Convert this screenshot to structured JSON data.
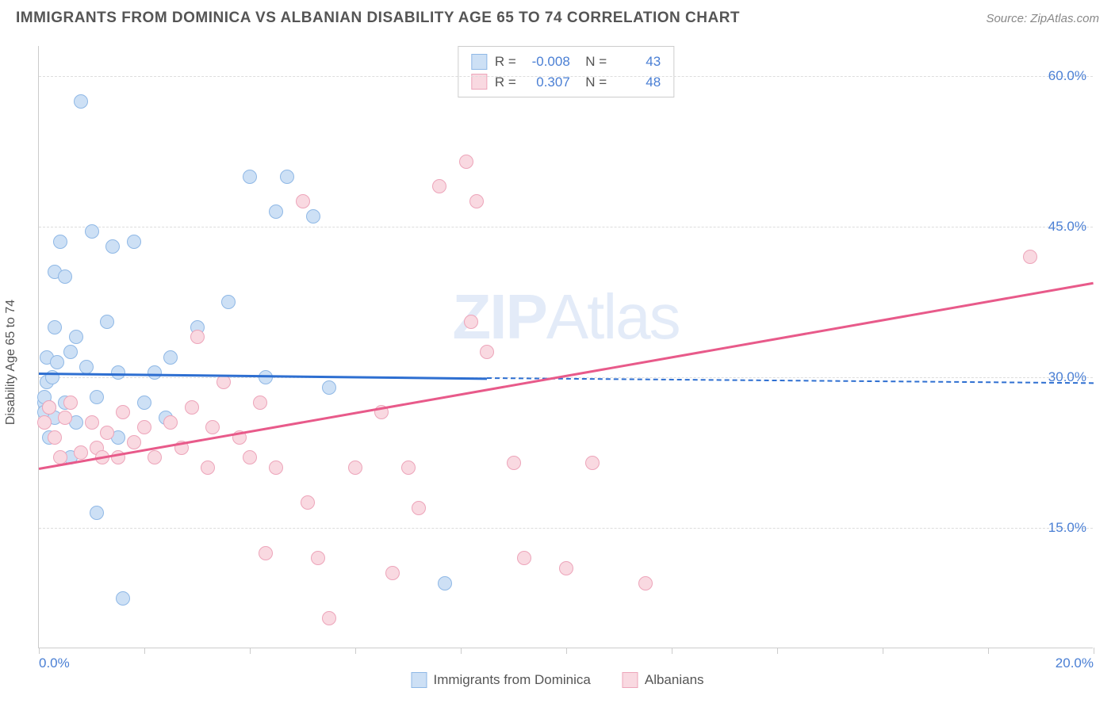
{
  "header": {
    "title": "IMMIGRANTS FROM DOMINICA VS ALBANIAN DISABILITY AGE 65 TO 74 CORRELATION CHART",
    "source": "Source: ZipAtlas.com"
  },
  "chart": {
    "type": "scatter",
    "yaxis_label": "Disability Age 65 to 74",
    "watermark": "ZIPAtlas",
    "background_color": "#ffffff",
    "grid_color": "#dddddd",
    "axis_color": "#cccccc",
    "label_color": "#555555",
    "tick_color": "#4a7fd4",
    "xlim": [
      0,
      20
    ],
    "ylim": [
      3,
      63
    ],
    "xticks": [
      0,
      2,
      4,
      6,
      8,
      10,
      12,
      14,
      16,
      18,
      20
    ],
    "xtick_labels": {
      "0": "0.0%",
      "20": "20.0%"
    },
    "yticks": [
      15,
      30,
      45,
      60
    ],
    "ytick_labels": {
      "15": "15.0%",
      "30": "30.0%",
      "45": "45.0%",
      "60": "60.0%"
    },
    "marker_radius": 9,
    "marker_stroke_width": 1.5,
    "series": [
      {
        "name": "Immigrants from Dominica",
        "color_fill": "#cde0f5",
        "color_stroke": "#8fb8e6",
        "r": "-0.008",
        "n": "43",
        "trend_color": "#2e6fd1",
        "trend_p1": [
          0.0,
          30.5
        ],
        "trend_p2": [
          8.5,
          30.0
        ],
        "dash_p1": [
          8.5,
          30.0
        ],
        "dash_p2": [
          20.0,
          29.5
        ],
        "points": [
          [
            0.1,
            27.5
          ],
          [
            0.1,
            28.0
          ],
          [
            0.1,
            26.5
          ],
          [
            0.15,
            32.0
          ],
          [
            0.2,
            27.0
          ],
          [
            0.2,
            24.0
          ],
          [
            0.3,
            26.0
          ],
          [
            0.3,
            35.0
          ],
          [
            0.3,
            40.5
          ],
          [
            0.35,
            31.5
          ],
          [
            0.4,
            43.5
          ],
          [
            0.5,
            40.0
          ],
          [
            0.5,
            27.5
          ],
          [
            0.6,
            32.5
          ],
          [
            0.6,
            22.0
          ],
          [
            0.7,
            34.0
          ],
          [
            0.7,
            25.5
          ],
          [
            0.8,
            57.5
          ],
          [
            0.9,
            31.0
          ],
          [
            1.0,
            44.5
          ],
          [
            1.1,
            16.5
          ],
          [
            1.1,
            28.0
          ],
          [
            1.3,
            35.5
          ],
          [
            1.4,
            43.0
          ],
          [
            1.5,
            30.5
          ],
          [
            1.5,
            24.0
          ],
          [
            1.6,
            8.0
          ],
          [
            1.8,
            43.5
          ],
          [
            2.0,
            27.5
          ],
          [
            2.2,
            30.5
          ],
          [
            2.4,
            26.0
          ],
          [
            2.5,
            32.0
          ],
          [
            3.0,
            35.0
          ],
          [
            3.6,
            37.5
          ],
          [
            4.0,
            50.0
          ],
          [
            4.3,
            30.0
          ],
          [
            4.5,
            46.5
          ],
          [
            4.7,
            50.0
          ],
          [
            5.2,
            46.0
          ],
          [
            5.5,
            29.0
          ],
          [
            7.7,
            9.5
          ],
          [
            0.15,
            29.5
          ],
          [
            0.25,
            30.0
          ]
        ]
      },
      {
        "name": "Albanians",
        "color_fill": "#f9d9e1",
        "color_stroke": "#eda5ba",
        "r": "0.307",
        "n": "48",
        "trend_color": "#e85a8a",
        "trend_p1": [
          0.0,
          21.0
        ],
        "trend_p2": [
          20.0,
          39.5
        ],
        "dash_p1": null,
        "dash_p2": null,
        "points": [
          [
            0.1,
            25.5
          ],
          [
            0.2,
            27.0
          ],
          [
            0.3,
            24.0
          ],
          [
            0.4,
            22.0
          ],
          [
            0.5,
            26.0
          ],
          [
            0.6,
            27.5
          ],
          [
            0.8,
            22.5
          ],
          [
            1.0,
            25.5
          ],
          [
            1.1,
            23.0
          ],
          [
            1.2,
            22.0
          ],
          [
            1.3,
            24.5
          ],
          [
            1.5,
            22.0
          ],
          [
            1.6,
            26.5
          ],
          [
            1.8,
            23.5
          ],
          [
            2.0,
            25.0
          ],
          [
            2.2,
            22.0
          ],
          [
            2.5,
            25.5
          ],
          [
            2.7,
            23.0
          ],
          [
            3.0,
            34.0
          ],
          [
            3.2,
            21.0
          ],
          [
            3.3,
            25.0
          ],
          [
            3.5,
            29.5
          ],
          [
            3.8,
            24.0
          ],
          [
            4.0,
            22.0
          ],
          [
            4.2,
            27.5
          ],
          [
            4.3,
            12.5
          ],
          [
            4.5,
            21.0
          ],
          [
            5.0,
            47.5
          ],
          [
            5.1,
            17.5
          ],
          [
            5.3,
            12.0
          ],
          [
            5.5,
            6.0
          ],
          [
            6.0,
            21.0
          ],
          [
            6.5,
            26.5
          ],
          [
            6.7,
            10.5
          ],
          [
            7.0,
            21.0
          ],
          [
            7.2,
            17.0
          ],
          [
            7.6,
            49.0
          ],
          [
            8.1,
            51.5
          ],
          [
            8.2,
            35.5
          ],
          [
            8.3,
            47.5
          ],
          [
            8.5,
            32.5
          ],
          [
            9.0,
            21.5
          ],
          [
            9.2,
            12.0
          ],
          [
            10.0,
            11.0
          ],
          [
            10.5,
            21.5
          ],
          [
            11.5,
            9.5
          ],
          [
            18.8,
            42.0
          ],
          [
            2.9,
            27.0
          ]
        ]
      }
    ],
    "legend_bottom": [
      {
        "label": "Immigrants from Dominica",
        "fill": "#cde0f5",
        "stroke": "#8fb8e6"
      },
      {
        "label": "Albanians",
        "fill": "#f9d9e1",
        "stroke": "#eda5ba"
      }
    ]
  }
}
